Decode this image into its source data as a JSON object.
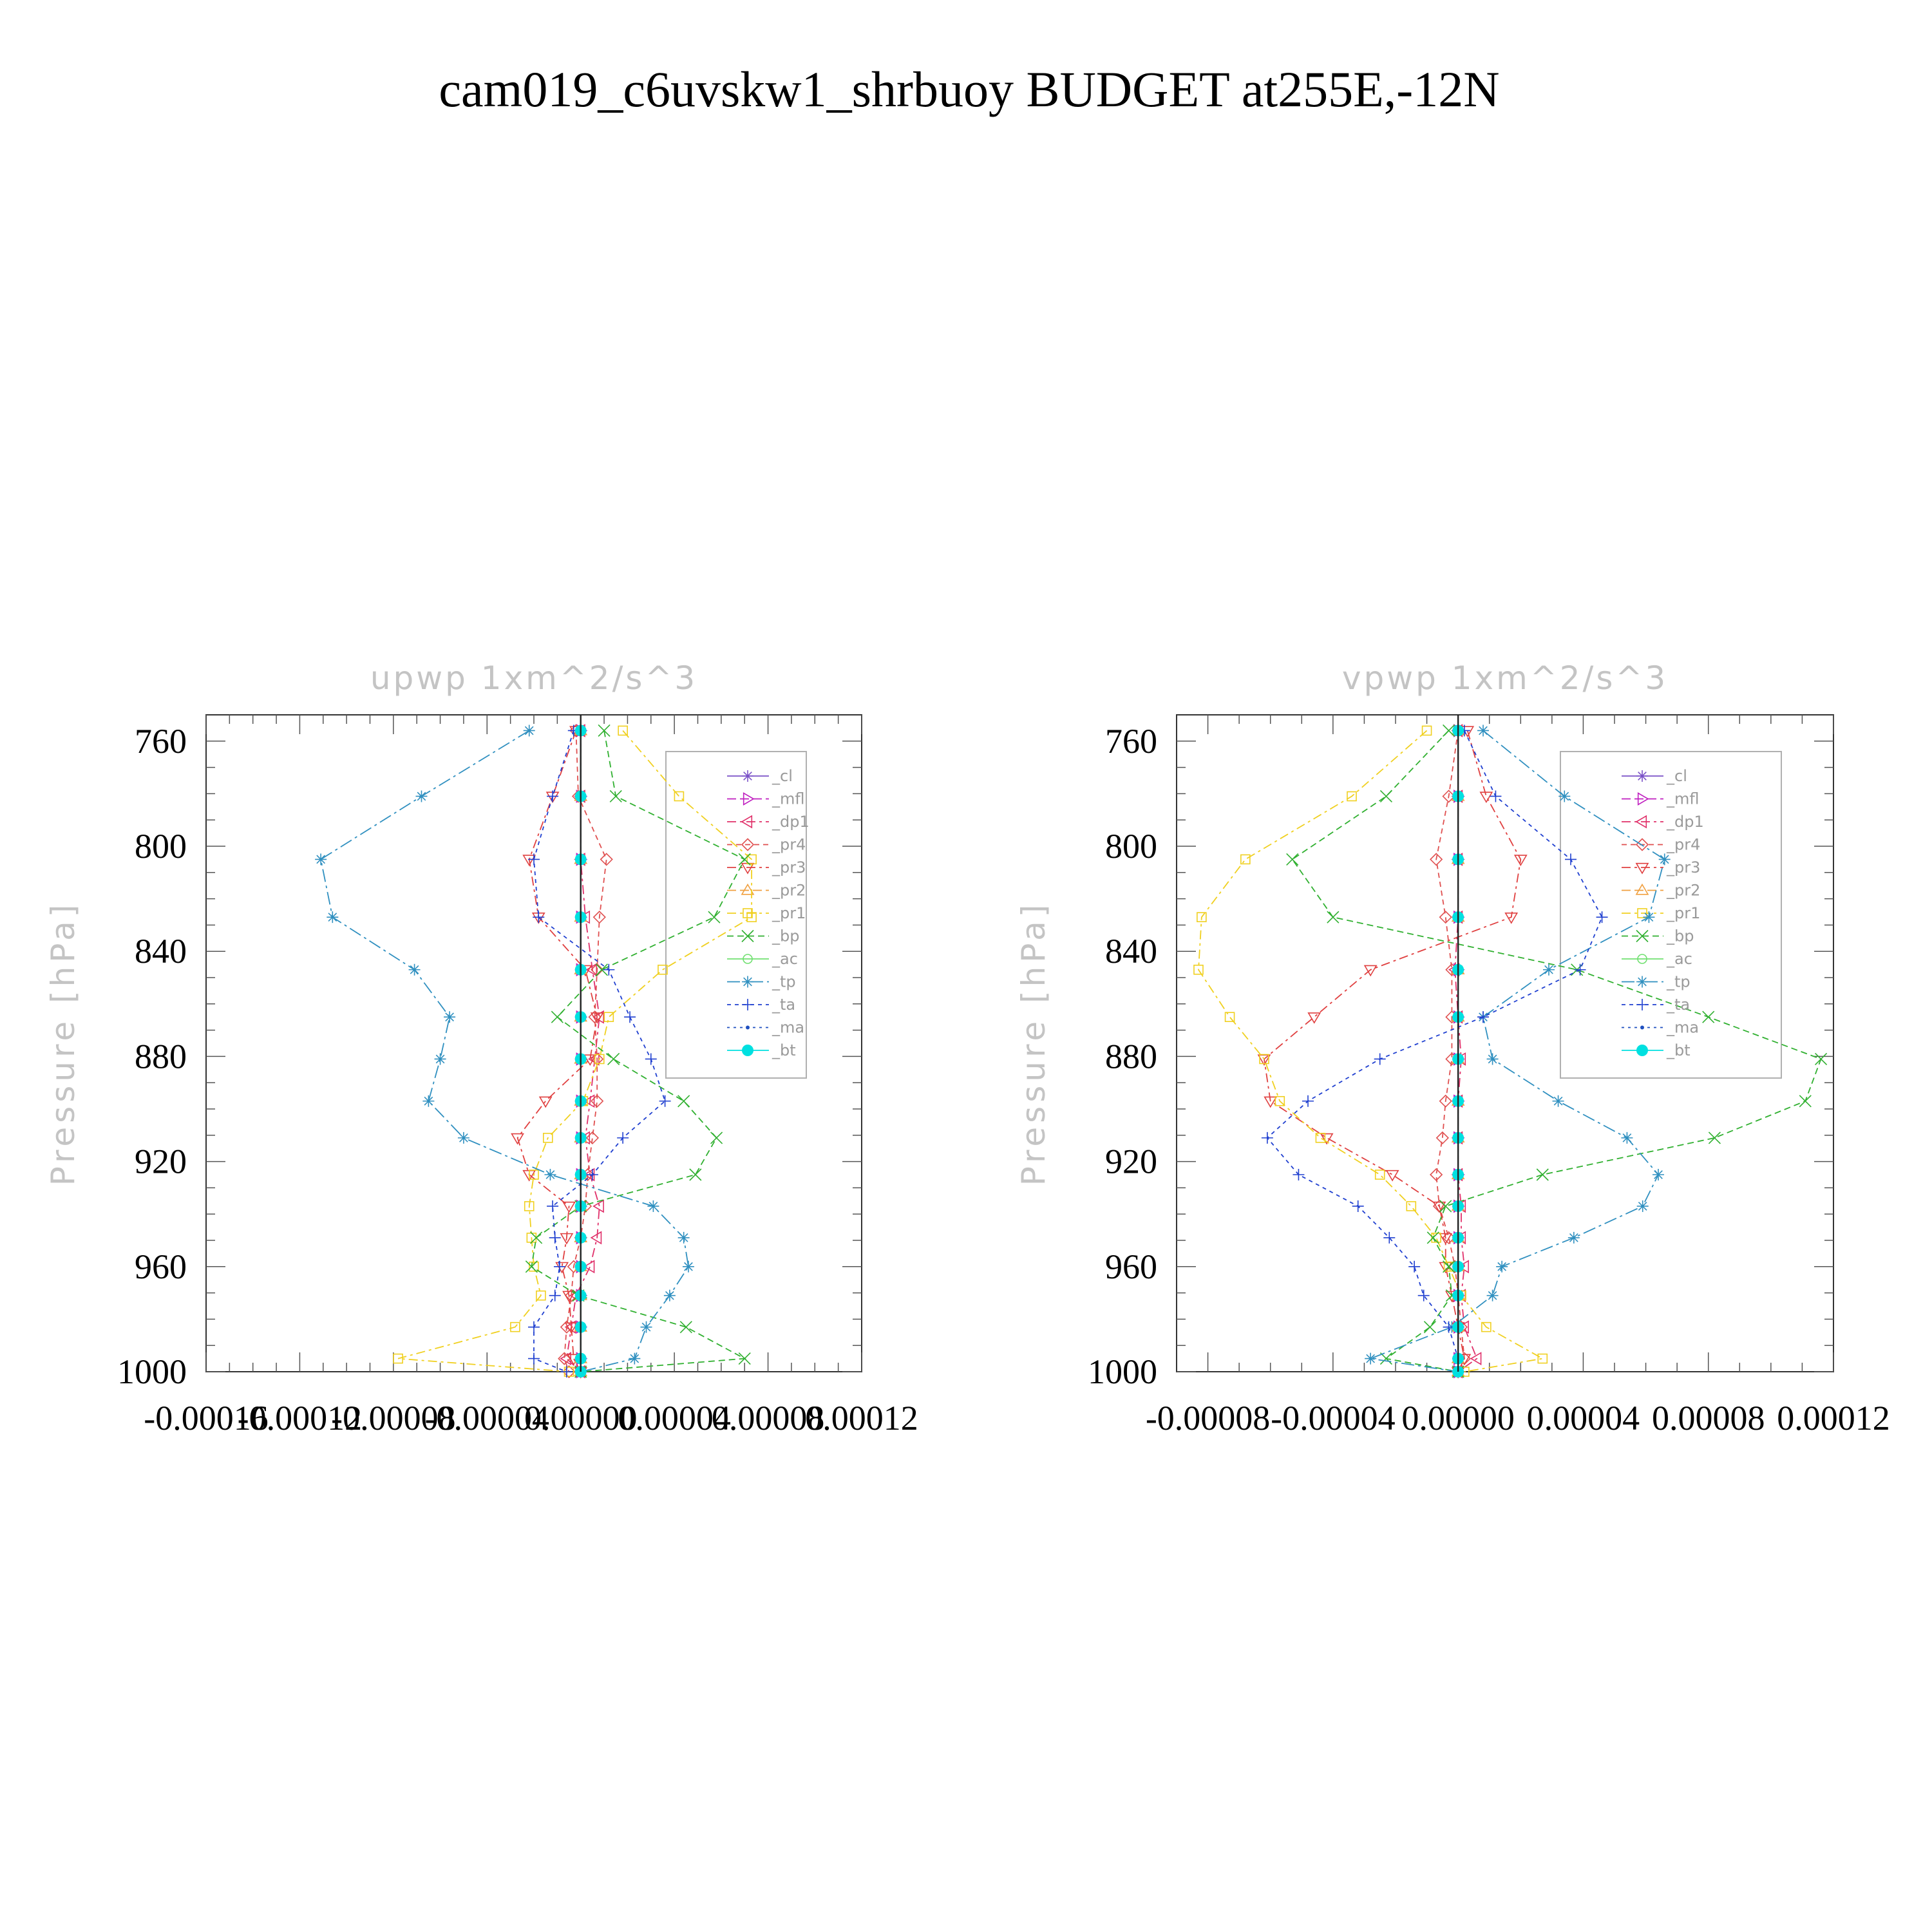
{
  "figure_title": "cam019_c6uvskw1_shrbuoy  BUDGET at255E,-12N",
  "chart_data": [
    {
      "type": "line",
      "title": "upwp   1xm^2/s^3",
      "xlabel": "",
      "ylabel": "Pressure  [hPa]",
      "xlim": [
        -0.00016,
        0.00012
      ],
      "ylim": [
        1000,
        750
      ],
      "xticks": [
        "-0.00016",
        "-0.00012",
        "-0.00008",
        "-0.00004",
        "0.00000",
        "0.00004",
        "0.00008",
        "0.00012"
      ],
      "yticks": [
        "760",
        "800",
        "840",
        "880",
        "920",
        "960",
        "1000"
      ],
      "grid": false,
      "legend_position": "right",
      "levels": [
        756,
        781,
        805,
        827,
        847,
        865,
        881,
        897,
        911,
        925,
        937,
        949,
        960,
        971,
        983,
        995,
        1000
      ],
      "series": [
        {
          "name": "_cl",
          "color": "#7b52c8",
          "marker": "star",
          "dash": "1 0",
          "values": [
            0,
            0,
            0,
            0,
            0,
            0,
            0,
            0,
            0,
            0,
            0,
            0,
            0,
            0,
            0,
            0,
            0
          ]
        },
        {
          "name": "_mfl",
          "color": "#c020c0",
          "marker": "triangle-right",
          "dash": "14 6",
          "values": [
            0,
            0,
            0,
            0,
            0,
            0,
            0,
            0,
            0,
            0,
            0,
            0,
            0,
            0,
            0,
            0,
            0
          ]
        },
        {
          "name": "_dp1",
          "color": "#e0306a",
          "marker": "triangle-left",
          "dash": "14 6 4 6",
          "values": [
            0,
            0,
            0,
            2e-06,
            5e-06,
            8e-06,
            6e-06,
            4e-06,
            2e-06,
            4e-06,
            8e-06,
            7e-06,
            4e-06,
            -2e-06,
            -4e-06,
            -6e-06,
            0
          ]
        },
        {
          "name": "_pr4",
          "color": "#e05050",
          "marker": "diamond",
          "dash": "8 6",
          "values": [
            -2e-06,
            -1e-06,
            1.1e-05,
            8e-06,
            7e-06,
            6e-06,
            7e-06,
            7e-06,
            5e-06,
            3e-06,
            2e-06,
            0,
            -3e-06,
            -4e-06,
            -6e-06,
            -7e-06,
            -5e-06
          ]
        },
        {
          "name": "_pr3",
          "color": "#e04040",
          "marker": "triangle-down",
          "dash": "14 6 4 6",
          "values": [
            -2e-06,
            -1.2e-05,
            -2.2e-05,
            -1.8e-05,
            2e-06,
            7e-06,
            4e-06,
            -1.5e-05,
            -2.7e-05,
            -2.2e-05,
            -5e-06,
            -6e-06,
            -8e-06,
            -5e-06,
            -4e-06,
            -3e-06,
            0
          ]
        },
        {
          "name": "_pr2",
          "color": "#f0a040",
          "marker": "triangle-up",
          "dash": "14 6",
          "values": [
            0,
            0,
            0,
            0,
            0,
            0,
            0,
            0,
            0,
            0,
            0,
            0,
            0,
            0,
            0,
            0,
            0
          ]
        },
        {
          "name": "_pr1",
          "color": "#f0d020",
          "marker": "square",
          "dash": "14 6 4 6",
          "values": [
            1.8e-05,
            4.2e-05,
            7.3e-05,
            7.3e-05,
            3.5e-05,
            1.2e-05,
            8e-06,
            1e-06,
            -1.4e-05,
            -2e-05,
            -2.2e-05,
            -2.1e-05,
            -2e-05,
            -1.7e-05,
            -2.8e-05,
            -7.8e-05,
            -5e-06
          ]
        },
        {
          "name": "_bp",
          "color": "#30b030",
          "marker": "x",
          "dash": "10 6",
          "values": [
            1e-05,
            1.5e-05,
            7e-05,
            5.7e-05,
            9e-06,
            -1e-05,
            1.4e-05,
            4.4e-05,
            5.8e-05,
            4.9e-05,
            0.0,
            -1.9e-05,
            -2.1e-05,
            -1e-06,
            4.5e-05,
            7e-05,
            0.0
          ]
        },
        {
          "name": "_ac",
          "color": "#70e070",
          "marker": "circle",
          "dash": "1 0",
          "values": [
            0,
            0,
            0,
            0,
            0,
            0,
            0,
            0,
            0,
            0,
            0,
            0,
            0,
            0,
            0,
            0,
            0
          ]
        },
        {
          "name": "_tp",
          "color": "#3090c0",
          "marker": "star",
          "dash": "20 6 4 6",
          "values": [
            -2.2e-05,
            -6.8e-05,
            -0.000111,
            -0.000106,
            -7.1e-05,
            -5.6e-05,
            -6e-05,
            -6.5e-05,
            -5e-05,
            -1.3e-05,
            3.1e-05,
            4.4e-05,
            4.6e-05,
            3.8e-05,
            2.8e-05,
            2.3e-05,
            0.0
          ]
        },
        {
          "name": "_ta",
          "color": "#2040d0",
          "marker": "plus",
          "dash": "6 6",
          "values": [
            -3e-06,
            -1.2e-05,
            -2e-05,
            -1.8e-05,
            1.2e-05,
            2.1e-05,
            3e-05,
            3.6e-05,
            1.8e-05,
            5e-06,
            -1.2e-05,
            -1.1e-05,
            -9e-06,
            -1.1e-05,
            -2e-05,
            -2e-05,
            -6e-06
          ]
        },
        {
          "name": "_ma",
          "color": "#2050c0",
          "marker": "dot",
          "dash": "4 6",
          "values": [
            0,
            0,
            0,
            0,
            0,
            0,
            0,
            0,
            0,
            0,
            0,
            0,
            0,
            0,
            0,
            0,
            0
          ]
        },
        {
          "name": "_bt",
          "color": "#00e0e0",
          "marker": "filled-circle",
          "dash": "1 0",
          "values": [
            0,
            0,
            0,
            0,
            0,
            0,
            0,
            0,
            0,
            0,
            0,
            0,
            0,
            0,
            0,
            0,
            0
          ]
        }
      ]
    },
    {
      "type": "line",
      "title": "vpwp   1xm^2/s^3",
      "xlabel": "",
      "ylabel": "Pressure  [hPa]",
      "xlim": [
        -9e-05,
        0.00012
      ],
      "ylim": [
        1000,
        750
      ],
      "xticks": [
        "-0.00008",
        "-0.00004",
        "0.00000",
        "0.00004",
        "0.00008",
        "0.00012"
      ],
      "yticks": [
        "760",
        "800",
        "840",
        "880",
        "920",
        "960",
        "1000"
      ],
      "grid": false,
      "legend_position": "right",
      "levels": [
        756,
        781,
        805,
        827,
        847,
        865,
        881,
        897,
        911,
        925,
        937,
        949,
        960,
        971,
        983,
        995,
        1000
      ],
      "series": [
        {
          "name": "_cl",
          "color": "#7b52c8",
          "marker": "star",
          "dash": "1 0",
          "values": [
            0,
            0,
            0,
            0,
            0,
            0,
            0,
            0,
            0,
            0,
            0,
            0,
            0,
            0,
            0,
            0,
            0
          ]
        },
        {
          "name": "_mfl",
          "color": "#c020c0",
          "marker": "triangle-right",
          "dash": "14 6",
          "values": [
            0,
            0,
            0,
            0,
            0,
            0,
            0,
            0,
            0,
            0,
            0,
            0,
            0,
            0,
            0,
            0,
            0
          ]
        },
        {
          "name": "_dp1",
          "color": "#e0306a",
          "marker": "triangle-left",
          "dash": "14 6 4 6",
          "values": [
            0,
            0,
            0,
            0,
            -1e-06,
            0,
            1e-06,
            0,
            0,
            0,
            1e-06,
            1e-06,
            2e-06,
            1e-06,
            2e-06,
            6e-06,
            0
          ]
        },
        {
          "name": "_pr4",
          "color": "#e05050",
          "marker": "diamond",
          "dash": "8 6",
          "values": [
            0,
            -3e-06,
            -7e-06,
            -4e-06,
            -2e-06,
            -2e-06,
            -2e-06,
            -4e-06,
            -5e-06,
            -7e-06,
            -6e-06,
            -3e-06,
            -1e-06,
            0,
            1e-06,
            2e-06,
            0
          ]
        },
        {
          "name": "_pr3",
          "color": "#e04040",
          "marker": "triangle-down",
          "dash": "14 6 4 6",
          "values": [
            3e-06,
            9e-06,
            2e-05,
            1.7e-05,
            -2.8e-05,
            -4.6e-05,
            -6.2e-05,
            -6e-05,
            -4.2e-05,
            -2.1e-05,
            -6e-06,
            -4e-06,
            -4e-06,
            -2e-06,
            0,
            2e-06,
            0
          ]
        },
        {
          "name": "_pr2",
          "color": "#f0a040",
          "marker": "triangle-up",
          "dash": "14 6",
          "values": [
            0,
            0,
            0,
            0,
            0,
            0,
            0,
            0,
            0,
            0,
            0,
            0,
            0,
            0,
            0,
            0,
            0
          ]
        },
        {
          "name": "_pr1",
          "color": "#f0d020",
          "marker": "square",
          "dash": "14 6 4 6",
          "values": [
            -1e-05,
            -3.4e-05,
            -6.8e-05,
            -8.2e-05,
            -8.3e-05,
            -7.3e-05,
            -6.2e-05,
            -5.7e-05,
            -4.4e-05,
            -2.5e-05,
            -1.5e-05,
            -7e-06,
            -3e-06,
            1e-06,
            9e-06,
            2.7e-05,
            2e-06
          ]
        },
        {
          "name": "_bp",
          "color": "#30b030",
          "marker": "x",
          "dash": "10 6",
          "values": [
            -3e-06,
            -2.3e-05,
            -5.3e-05,
            -4e-05,
            3.8e-05,
            8e-05,
            0.000116,
            0.000111,
            8.2e-05,
            2.7e-05,
            -4e-06,
            -8e-06,
            -3e-06,
            -2e-06,
            -9e-06,
            -2.3e-05,
            0
          ]
        },
        {
          "name": "_ac",
          "color": "#70e070",
          "marker": "circle",
          "dash": "1 0",
          "values": [
            0,
            0,
            0,
            0,
            0,
            0,
            0,
            0,
            0,
            0,
            0,
            0,
            0,
            0,
            0,
            0,
            0
          ]
        },
        {
          "name": "_tp",
          "color": "#3090c0",
          "marker": "star",
          "dash": "20 6 4 6",
          "values": [
            8e-06,
            3.4e-05,
            6.6e-05,
            6.1e-05,
            2.9e-05,
            8e-06,
            1.1e-05,
            3.2e-05,
            5.4e-05,
            6.4e-05,
            5.9e-05,
            3.7e-05,
            1.4e-05,
            1.1e-05,
            -2e-06,
            -2.8e-05,
            0
          ]
        },
        {
          "name": "_ta",
          "color": "#2040d0",
          "marker": "plus",
          "dash": "6 6",
          "values": [
            2e-06,
            1.2e-05,
            3.6e-05,
            4.6e-05,
            3.9e-05,
            8e-06,
            -2.5e-05,
            -4.8e-05,
            -6.1e-05,
            -5.1e-05,
            -3.2e-05,
            -2.2e-05,
            -1.4e-05,
            -1.1e-05,
            -3e-06,
            0,
            0
          ]
        },
        {
          "name": "_ma",
          "color": "#2050c0",
          "marker": "dot",
          "dash": "4 6",
          "values": [
            0,
            0,
            0,
            0,
            0,
            0,
            0,
            0,
            0,
            0,
            0,
            0,
            0,
            0,
            0,
            0,
            0
          ]
        },
        {
          "name": "_bt",
          "color": "#00e0e0",
          "marker": "filled-circle",
          "dash": "1 0",
          "values": [
            0,
            0,
            0,
            0,
            0,
            0,
            0,
            0,
            0,
            0,
            0,
            0,
            0,
            0,
            0,
            0,
            0
          ]
        }
      ]
    }
  ]
}
